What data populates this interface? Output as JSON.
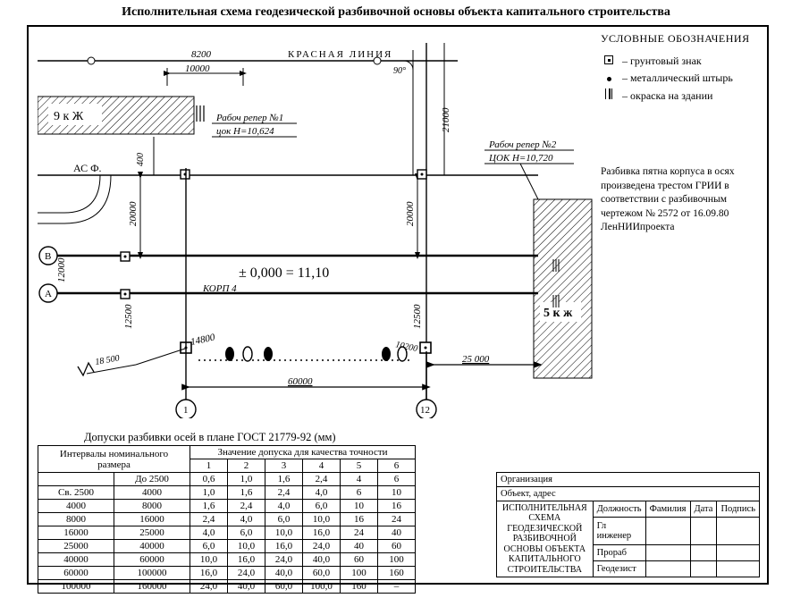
{
  "title": "Исполнительная схема геодезической разбивочной основы объекта капитального строительства",
  "legend": {
    "heading": "УСЛОВНЫЕ ОБОЗНАЧЕНИЯ",
    "i1": "– грунтовый знак",
    "i2": "– металлический штырь",
    "i3": "– окраска на здании"
  },
  "note": "Разбивка пятна корпуса в осях произведена трестом ГРИИ в соответствии с разбивочным чертежом № 2572 от 16.09.80 ЛенНИИпроекта",
  "diag": {
    "red_line": "КРАСНАЯ  ЛИНИЯ",
    "d8200": "8200",
    "d10000": "10000",
    "angle90": "90°",
    "bldg9": "9 к Ж",
    "reper1a": "Рабоч репер №1",
    "reper1b": "цок H=10,624",
    "reper2a": "Рабоч репер №2",
    "reper2b": "ЦОК  H=10,720",
    "as_f": "АС Ф.",
    "d400": "400",
    "d20000": "20000",
    "d21000": "21000",
    "d20000b": "20000",
    "d12000": "12000",
    "d12500": "12500",
    "d12500b": "12500",
    "d14800": "14800",
    "d18500": "18 500",
    "d10200": "10200",
    "d60000": "60000",
    "d25000": "25 000",
    "zero": "± 0,000 = 11,10",
    "korp": "КОРП 4",
    "bldg5": "5 к ж",
    "axisA": "А",
    "axisB": "В",
    "axis1": "1",
    "axis12": "12"
  },
  "tol": {
    "caption": "Допуски разбивки осей в плане ГОСТ 21779-92 (мм)",
    "h1": "Интервалы номинального размера",
    "h2": "Значение допуска для качества точности",
    "c": [
      "1",
      "2",
      "3",
      "4",
      "5",
      "6"
    ],
    "rows": [
      [
        "",
        "До 2500",
        "0,6",
        "1,0",
        "1,6",
        "2,4",
        "4",
        "6"
      ],
      [
        "Св. 2500",
        "4000",
        "1,0",
        "1,6",
        "2,4",
        "4,0",
        "6",
        "10"
      ],
      [
        "4000",
        "8000",
        "1,6",
        "2,4",
        "4,0",
        "6,0",
        "10",
        "16"
      ],
      [
        "8000",
        "16000",
        "2,4",
        "4,0",
        "6,0",
        "10,0",
        "16",
        "24"
      ],
      [
        "16000",
        "25000",
        "4,0",
        "6,0",
        "10,0",
        "16,0",
        "24",
        "40"
      ],
      [
        "25000",
        "40000",
        "6,0",
        "10,0",
        "16,0",
        "24,0",
        "40",
        "60"
      ],
      [
        "40000",
        "60000",
        "10,0",
        "16,0",
        "24,0",
        "40,0",
        "60",
        "100"
      ],
      [
        "60000",
        "100000",
        "16,0",
        "24,0",
        "40,0",
        "60,0",
        "100",
        "160"
      ],
      [
        "100000",
        "160000",
        "24,0",
        "40,0",
        "60,0",
        "100,0",
        "160",
        "–"
      ]
    ]
  },
  "titleblock": {
    "org": "Организация",
    "addr": "Объект, адрес",
    "doc": "ИСПОЛНИТЕЛЬНАЯ СХЕМА ГЕОДЕЗИЧЕСКОЙ РАЗБИВОЧНОЙ ОСНОВЫ ОБЪЕКТА КАПИТАЛЬНОГО СТРОИТЕЛЬСТВА",
    "h_pos": "Должность",
    "h_name": "Фамилия",
    "h_date": "Дата",
    "h_sign": "Подпись",
    "r1": "Гл инженер",
    "r2": "Прораб",
    "r3": "Геодезист"
  },
  "style": {
    "stroke": "#000000",
    "hatch": "#000000",
    "bg": "#ffffff",
    "line_thin": 1,
    "line_med": 1.6,
    "line_heavy": 2.4
  }
}
